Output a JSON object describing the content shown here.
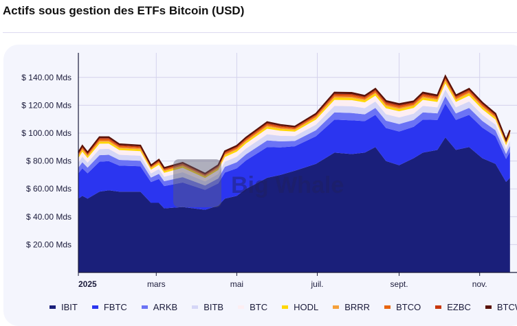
{
  "title": "Actifs sous gestion des ETFs Bitcoin (USD)",
  "watermark": "The Big Whale",
  "chart_data": {
    "type": "area",
    "stacked": true,
    "title": "Actifs sous gestion des ETFs Bitcoin (USD)",
    "xlabel": "",
    "ylabel": "",
    "ylim": [
      0,
      157
    ],
    "yticks": [
      20,
      40,
      60,
      80,
      100,
      120,
      140
    ],
    "ytick_labels": [
      "$ 20.00 Mds",
      "$ 40.00 Mds",
      "$ 60.00 Mds",
      "$ 80.00 Mds",
      "$ 100.00 Mds",
      "$ 120.00 Mds",
      "$ 140.00 Mds"
    ],
    "xticks": [
      {
        "date": "2025-01-01",
        "label": "2025",
        "bold": true
      },
      {
        "date": "2025-03-01",
        "label": "mars"
      },
      {
        "date": "2025-05-01",
        "label": "mai"
      },
      {
        "date": "2025-07-01",
        "label": "juil."
      },
      {
        "date": "2025-09-01",
        "label": "sept."
      },
      {
        "date": "2025-11-01",
        "label": "nov."
      }
    ],
    "grid": true,
    "legend_position": "bottom",
    "unit": "Mds USD",
    "x": [
      "2025-01-01",
      "2025-01-04",
      "2025-01-08",
      "2025-01-17",
      "2025-01-24",
      "2025-02-01",
      "2025-02-17",
      "2025-02-25",
      "2025-03-03",
      "2025-03-07",
      "2025-03-21",
      "2025-04-07",
      "2025-04-17",
      "2025-04-22",
      "2025-05-01",
      "2025-05-08",
      "2025-05-24",
      "2025-06-03",
      "2025-06-14",
      "2025-06-30",
      "2025-07-14",
      "2025-07-27",
      "2025-08-06",
      "2025-08-14",
      "2025-08-22",
      "2025-09-01",
      "2025-09-12",
      "2025-09-19",
      "2025-09-30",
      "2025-10-06",
      "2025-10-14",
      "2025-10-24",
      "2025-11-03",
      "2025-11-13",
      "2025-11-21",
      "2025-11-24"
    ],
    "series": [
      {
        "name": "IBIT",
        "color": "#1a1f7a",
        "values": [
          53,
          55,
          53,
          58,
          59,
          58,
          58,
          50,
          50,
          46,
          47,
          45,
          48,
          53,
          55,
          60,
          68,
          70,
          73,
          78,
          86,
          85,
          86,
          90,
          80,
          77,
          82,
          86,
          88,
          97,
          88,
          90,
          82,
          78,
          65,
          68
        ]
      },
      {
        "name": "FBTC",
        "color": "#2b35f0",
        "values": [
          18.2,
          19.8,
          18.2,
          21.5,
          20.9,
          18.7,
          18.2,
          14.9,
          17.1,
          16.0,
          17.6,
          14.3,
          16.0,
          18.7,
          19.8,
          20.4,
          22.0,
          19.8,
          17.6,
          19.8,
          23.7,
          24.2,
          22.6,
          23.1,
          23.7,
          24.2,
          22.6,
          23.7,
          21.5,
          24.2,
          21.5,
          23.1,
          22.0,
          19.8,
          16.5,
          18.7
        ]
      },
      {
        "name": "ARKB",
        "color": "#6b73f5",
        "values": [
          4.0,
          4.3,
          4.0,
          4.7,
          4.6,
          4.1,
          4.0,
          3.2,
          3.7,
          3.5,
          3.8,
          3.1,
          3.5,
          4.1,
          4.3,
          4.4,
          4.8,
          4.3,
          3.8,
          4.3,
          5.2,
          5.3,
          4.9,
          5.0,
          5.2,
          5.3,
          4.9,
          5.2,
          4.7,
          5.3,
          4.7,
          5.0,
          4.8,
          4.3,
          3.6,
          4.1
        ]
      },
      {
        "name": "BITB",
        "color": "#d5d6f7",
        "values": [
          3.6,
          4.0,
          3.6,
          4.3,
          4.2,
          3.7,
          3.6,
          3.0,
          3.4,
          3.2,
          3.5,
          2.9,
          3.2,
          3.7,
          4.0,
          4.1,
          4.4,
          4.0,
          3.5,
          4.0,
          4.7,
          4.8,
          4.5,
          4.6,
          4.7,
          4.8,
          4.5,
          4.7,
          4.3,
          4.8,
          4.3,
          4.6,
          4.4,
          4.0,
          3.3,
          3.7
        ]
      },
      {
        "name": "BTC",
        "color": "#fdeef2",
        "values": [
          3.3,
          3.6,
          3.3,
          3.9,
          3.8,
          3.4,
          3.3,
          2.7,
          3.1,
          2.9,
          3.2,
          2.6,
          2.9,
          3.4,
          3.6,
          3.7,
          4.0,
          3.6,
          3.2,
          3.6,
          4.3,
          4.4,
          4.1,
          4.2,
          4.3,
          4.4,
          4.1,
          4.3,
          3.9,
          4.4,
          3.9,
          4.2,
          4.0,
          3.6,
          3.0,
          3.4
        ]
      },
      {
        "name": "HODL",
        "color": "#ffd700",
        "values": [
          1.2,
          1.3,
          1.2,
          1.4,
          1.3,
          1.2,
          1.2,
          0.9,
          1.1,
          1.0,
          1.1,
          0.9,
          1.0,
          1.2,
          1.3,
          1.3,
          1.4,
          1.3,
          1.1,
          1.3,
          1.5,
          1.5,
          1.4,
          1.5,
          1.5,
          1.5,
          1.4,
          1.5,
          1.4,
          1.5,
          1.4,
          1.5,
          1.4,
          1.3,
          1.1,
          1.2
        ]
      },
      {
        "name": "BRRR",
        "color": "#f5a03a",
        "values": [
          0.7,
          0.7,
          0.7,
          0.8,
          0.8,
          0.7,
          0.7,
          0.5,
          0.6,
          0.6,
          0.6,
          0.5,
          0.6,
          0.7,
          0.7,
          0.7,
          0.8,
          0.7,
          0.6,
          0.7,
          0.9,
          0.9,
          0.8,
          0.8,
          0.9,
          0.9,
          0.8,
          0.9,
          0.8,
          0.9,
          0.8,
          0.8,
          0.8,
          0.7,
          0.6,
          0.7
        ]
      },
      {
        "name": "BTCO",
        "color": "#e8650f",
        "values": [
          0.8,
          0.9,
          0.8,
          1.0,
          1.0,
          0.9,
          0.8,
          0.7,
          0.8,
          0.7,
          0.8,
          0.7,
          0.7,
          0.9,
          0.9,
          0.9,
          1.0,
          0.9,
          0.8,
          0.9,
          1.1,
          1.1,
          1.0,
          1.1,
          1.1,
          1.1,
          1.0,
          1.1,
          1.0,
          1.1,
          1.0,
          1.1,
          1.0,
          0.9,
          0.8,
          0.9
        ]
      },
      {
        "name": "EZBC",
        "color": "#c8370d",
        "values": [
          0.7,
          0.7,
          0.7,
          0.8,
          0.8,
          0.7,
          0.7,
          0.5,
          0.6,
          0.6,
          0.6,
          0.5,
          0.6,
          0.7,
          0.7,
          0.7,
          0.8,
          0.7,
          0.6,
          0.7,
          0.9,
          0.9,
          0.8,
          0.8,
          0.9,
          0.9,
          0.8,
          0.9,
          0.8,
          0.9,
          0.8,
          0.8,
          0.8,
          0.7,
          0.6,
          0.7
        ]
      },
      {
        "name": "BTCW",
        "color": "#5a1208",
        "values": [
          0.7,
          0.7,
          0.7,
          0.8,
          0.8,
          0.7,
          0.7,
          0.5,
          0.6,
          0.6,
          0.6,
          0.5,
          0.6,
          0.7,
          0.7,
          0.7,
          0.8,
          0.7,
          0.6,
          0.7,
          0.9,
          0.9,
          0.8,
          0.8,
          0.9,
          0.9,
          0.8,
          0.9,
          0.8,
          0.9,
          0.8,
          0.8,
          0.8,
          0.7,
          0.6,
          0.7
        ]
      }
    ]
  }
}
